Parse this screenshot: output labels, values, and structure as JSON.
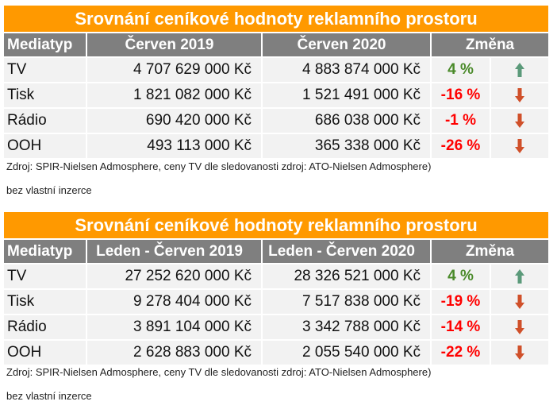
{
  "tables": [
    {
      "title": "Srovnání ceníkové hodnoty reklamního prostoru",
      "headers": [
        "Mediatyp",
        "Červen 2019",
        "Červen 2020",
        "Změna"
      ],
      "rows": [
        {
          "media": "TV",
          "v1": "4 707 629 000 Kč",
          "v2": "4 883 874 000 Kč",
          "change": "4 %",
          "dir": "up"
        },
        {
          "media": "Tisk",
          "v1": "1 821 082 000 Kč",
          "v2": "1 521 491 000 Kč",
          "change": "-16 %",
          "dir": "down"
        },
        {
          "media": "Rádio",
          "v1": "690 420 000 Kč",
          "v2": "686 038 000 Kč",
          "change": "-1 %",
          "dir": "down"
        },
        {
          "media": "OOH",
          "v1": "493 113 000 Kč",
          "v2": "365 338 000 Kč",
          "change": "-26 %",
          "dir": "down"
        }
      ],
      "source": "Zdroj: SPIR-Nielsen Admosphere, ceny TV dle sledovanosti zdroj: ATO-Nielsen Admosphere)",
      "note": "bez vlastní inzerce"
    },
    {
      "title": "Srovnání ceníkové hodnoty reklamního prostoru",
      "headers": [
        "Mediatyp",
        "Leden - Červen 2019",
        "Leden - Červen 2020",
        "Změna"
      ],
      "rows": [
        {
          "media": "TV",
          "v1": "27 252 620 000 Kč",
          "v2": "28 326 521 000 Kč",
          "change": "4 %",
          "dir": "up"
        },
        {
          "media": "Tisk",
          "v1": "9 278 404 000 Kč",
          "v2": "7 517 838 000 Kč",
          "change": "-19 %",
          "dir": "down"
        },
        {
          "media": "Rádio",
          "v1": "3 891 104 000 Kč",
          "v2": "3 342 788 000 Kč",
          "change": "-14 %",
          "dir": "down"
        },
        {
          "media": "OOH",
          "v1": "2 628 883 000 Kč",
          "v2": "2 055 540 000 Kč",
          "change": "-22 %",
          "dir": "down"
        }
      ],
      "source": "Zdroj: SPIR-Nielsen Admosphere, ceny TV dle sledovanosti zdroj: ATO-Nielsen Admosphere)",
      "note": "bez vlastní inzerce"
    }
  ],
  "colors": {
    "title_bg": "#ff9900",
    "header_bg": "#7f7f7f",
    "positive": "#4a8a2a",
    "negative": "#ff0000",
    "arrow_up": "#5b9a7a",
    "arrow_down": "#d0502a"
  }
}
